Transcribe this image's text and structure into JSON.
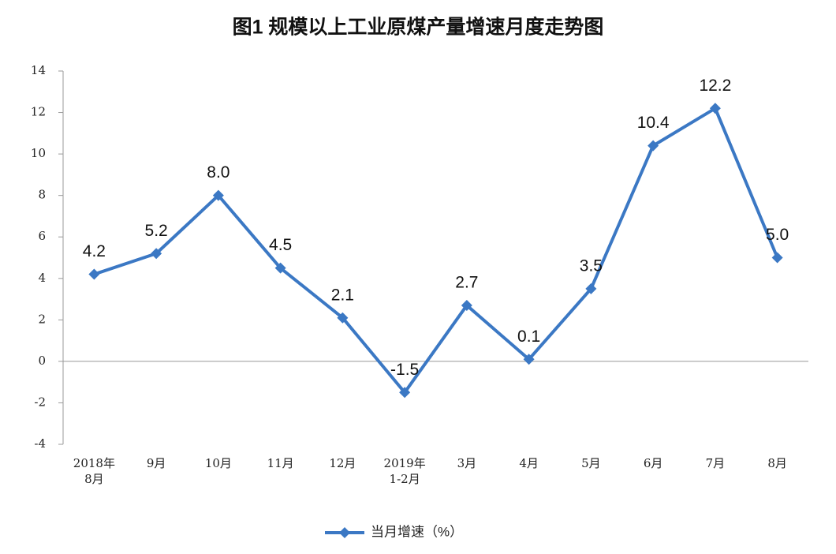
{
  "chart_data": {
    "type": "line",
    "title": "图1  规模以上工业原煤产量增速月度走势图",
    "categories": [
      "2018年\n8月",
      "9月",
      "10月",
      "11月",
      "12月",
      "2019年\n1-2月",
      "3月",
      "4月",
      "5月",
      "6月",
      "7月",
      "8月"
    ],
    "series": [
      {
        "name": "当月增速（%）",
        "color": "#3b78c4",
        "values": [
          4.2,
          5.2,
          8.0,
          4.5,
          2.1,
          -1.5,
          2.7,
          0.1,
          3.5,
          10.4,
          12.2,
          5.0
        ],
        "value_labels": [
          "4.2",
          "5.2",
          "8.0",
          "4.5",
          "2.1",
          "-1.5",
          "2.7",
          "0.1",
          "3.5",
          "10.4",
          "12.2",
          "5.0"
        ]
      }
    ],
    "ylim": [
      -4,
      14
    ],
    "yticks": [
      -4,
      -2,
      0,
      2,
      4,
      6,
      8,
      10,
      12,
      14
    ],
    "grid": false,
    "legend": "bottom"
  }
}
